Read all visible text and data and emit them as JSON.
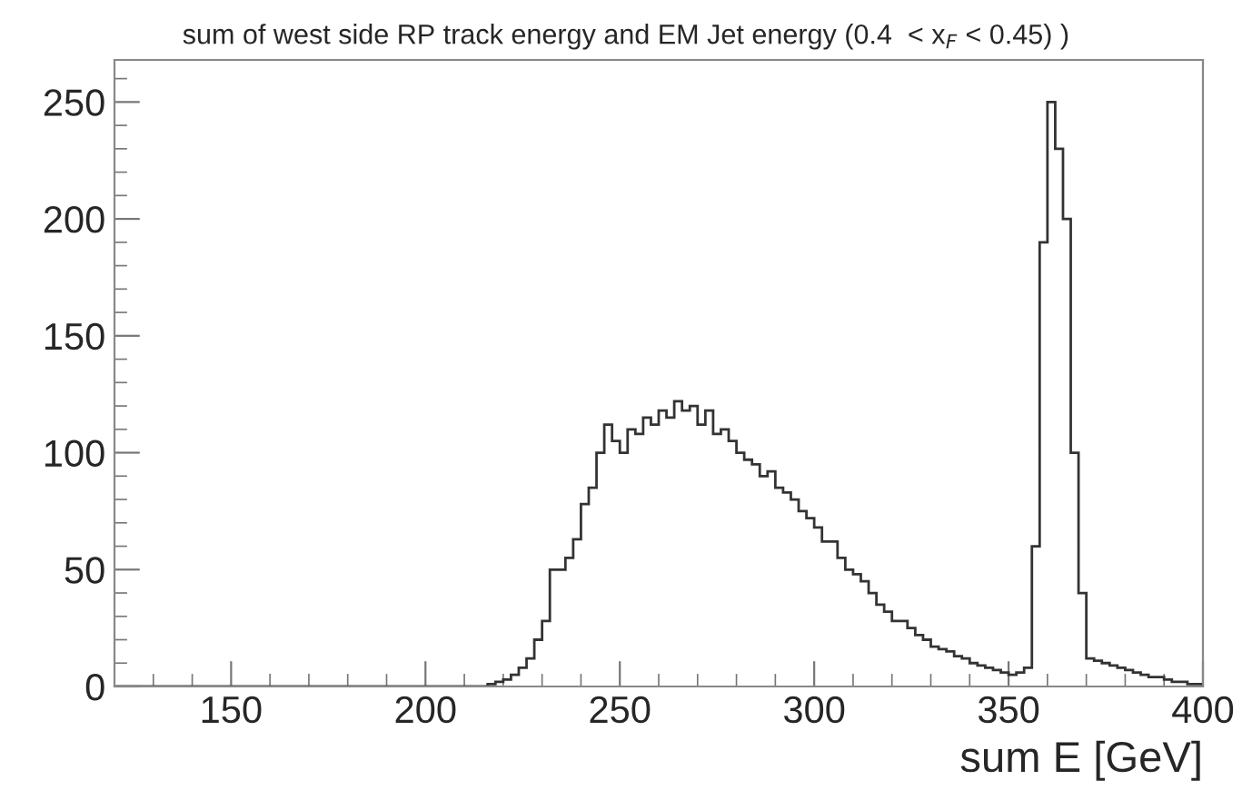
{
  "chart_data": {
    "type": "histogram",
    "title": "sum of west side RP track energy and EM Jet energy (0.4  < x$_{F}$ < 0.45) )",
    "xlabel": "sum E [GeV]",
    "bins": [
      120,
      122,
      124,
      126,
      128,
      130,
      132,
      134,
      136,
      138,
      140,
      142,
      144,
      146,
      148,
      150,
      152,
      154,
      156,
      158,
      160,
      162,
      164,
      166,
      168,
      170,
      172,
      174,
      176,
      178,
      180,
      182,
      184,
      186,
      188,
      190,
      192,
      194,
      196,
      198,
      200,
      202,
      204,
      206,
      208,
      210,
      212,
      214,
      216,
      218,
      220,
      222,
      224,
      226,
      228,
      230,
      232,
      234,
      236,
      238,
      240,
      242,
      244,
      246,
      248,
      250,
      252,
      254,
      256,
      258,
      260,
      262,
      264,
      266,
      268,
      270,
      272,
      274,
      276,
      278,
      280,
      282,
      284,
      286,
      288,
      290,
      292,
      294,
      296,
      298,
      300,
      302,
      304,
      306,
      308,
      310,
      312,
      314,
      316,
      318,
      320,
      322,
      324,
      326,
      328,
      330,
      332,
      334,
      336,
      338,
      340,
      342,
      344,
      346,
      348,
      350,
      352,
      354,
      356,
      358,
      360,
      362,
      364,
      366,
      368,
      370,
      372,
      374,
      376,
      378,
      380,
      382,
      384,
      386,
      388,
      390,
      392,
      394,
      396,
      398,
      400
    ],
    "values": [
      0,
      0,
      0,
      0,
      0,
      0,
      0,
      0,
      0,
      0,
      0,
      0,
      0,
      0,
      0,
      0,
      0,
      0,
      0,
      0,
      0,
      0,
      0,
      0,
      0,
      0,
      0,
      0,
      0,
      0,
      0,
      0,
      0,
      0,
      0,
      0,
      0,
      0,
      0,
      0,
      0,
      0,
      0,
      0,
      0,
      0,
      0,
      0,
      1,
      2,
      3,
      5,
      8,
      12,
      20,
      28,
      50,
      50,
      55,
      63,
      78,
      85,
      100,
      112,
      105,
      100,
      110,
      108,
      115,
      112,
      118,
      115,
      122,
      118,
      120,
      112,
      118,
      108,
      110,
      105,
      100,
      97,
      95,
      90,
      92,
      85,
      83,
      80,
      75,
      72,
      68,
      62,
      62,
      55,
      50,
      48,
      45,
      40,
      35,
      32,
      28,
      28,
      25,
      22,
      20,
      17,
      16,
      15,
      13,
      12,
      10,
      9,
      8,
      7,
      6,
      5,
      6,
      8,
      60,
      190,
      250,
      230,
      200,
      100,
      40,
      12,
      11,
      10,
      9,
      8,
      7,
      6,
      5,
      4,
      4,
      3,
      2,
      2,
      1,
      1
    ],
    "color": "#333333",
    "xlim": [
      120,
      400
    ],
    "xticks": [
      150,
      200,
      250,
      300,
      350,
      400
    ],
    "ylim": [
      0,
      268
    ],
    "yticks": [
      0,
      50,
      100,
      150,
      200,
      250
    ],
    "grid": false,
    "legend": false
  }
}
